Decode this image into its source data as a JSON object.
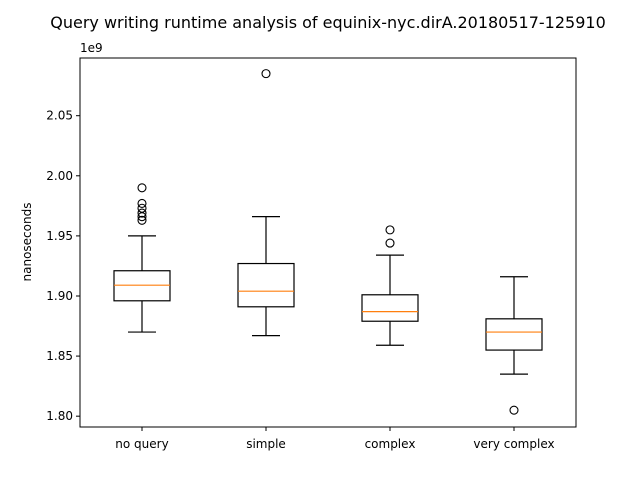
{
  "chart_data": {
    "type": "boxplot",
    "title": "Query writing runtime analysis of equinix-nyc.dirA.20180517-125910",
    "xlabel": "",
    "ylabel": "nanoseconds",
    "y_offset_label": "1e9",
    "ylim": [
      1.791,
      2.098
    ],
    "yticks": [
      {
        "value": 1.8,
        "label": "1.80"
      },
      {
        "value": 1.85,
        "label": "1.85"
      },
      {
        "value": 1.9,
        "label": "1.90"
      },
      {
        "value": 1.95,
        "label": "1.95"
      },
      {
        "value": 2.0,
        "label": "2.00"
      },
      {
        "value": 2.05,
        "label": "2.05"
      }
    ],
    "grid": false,
    "categories": [
      "no query",
      "simple",
      "complex",
      "very complex"
    ],
    "boxes": [
      {
        "label": "no query",
        "whisker_low": 1.87,
        "q1": 1.896,
        "median": 1.909,
        "q3": 1.921,
        "whisker_high": 1.95,
        "fliers": [
          1.99,
          1.977,
          1.973,
          1.969,
          1.966,
          1.963
        ]
      },
      {
        "label": "simple",
        "whisker_low": 1.867,
        "q1": 1.891,
        "median": 1.904,
        "q3": 1.927,
        "whisker_high": 1.966,
        "fliers": [
          2.085
        ]
      },
      {
        "label": "complex",
        "whisker_low": 1.859,
        "q1": 1.879,
        "median": 1.887,
        "q3": 1.901,
        "whisker_high": 1.934,
        "fliers": [
          1.955,
          1.944
        ]
      },
      {
        "label": "very complex",
        "whisker_low": 1.835,
        "q1": 1.855,
        "median": 1.87,
        "q3": 1.881,
        "whisker_high": 1.916,
        "fliers": [
          1.805
        ]
      }
    ],
    "colors": {
      "box": "#000000",
      "median": "#ff7f0e",
      "axes": "#000000",
      "background": "#ffffff"
    }
  }
}
